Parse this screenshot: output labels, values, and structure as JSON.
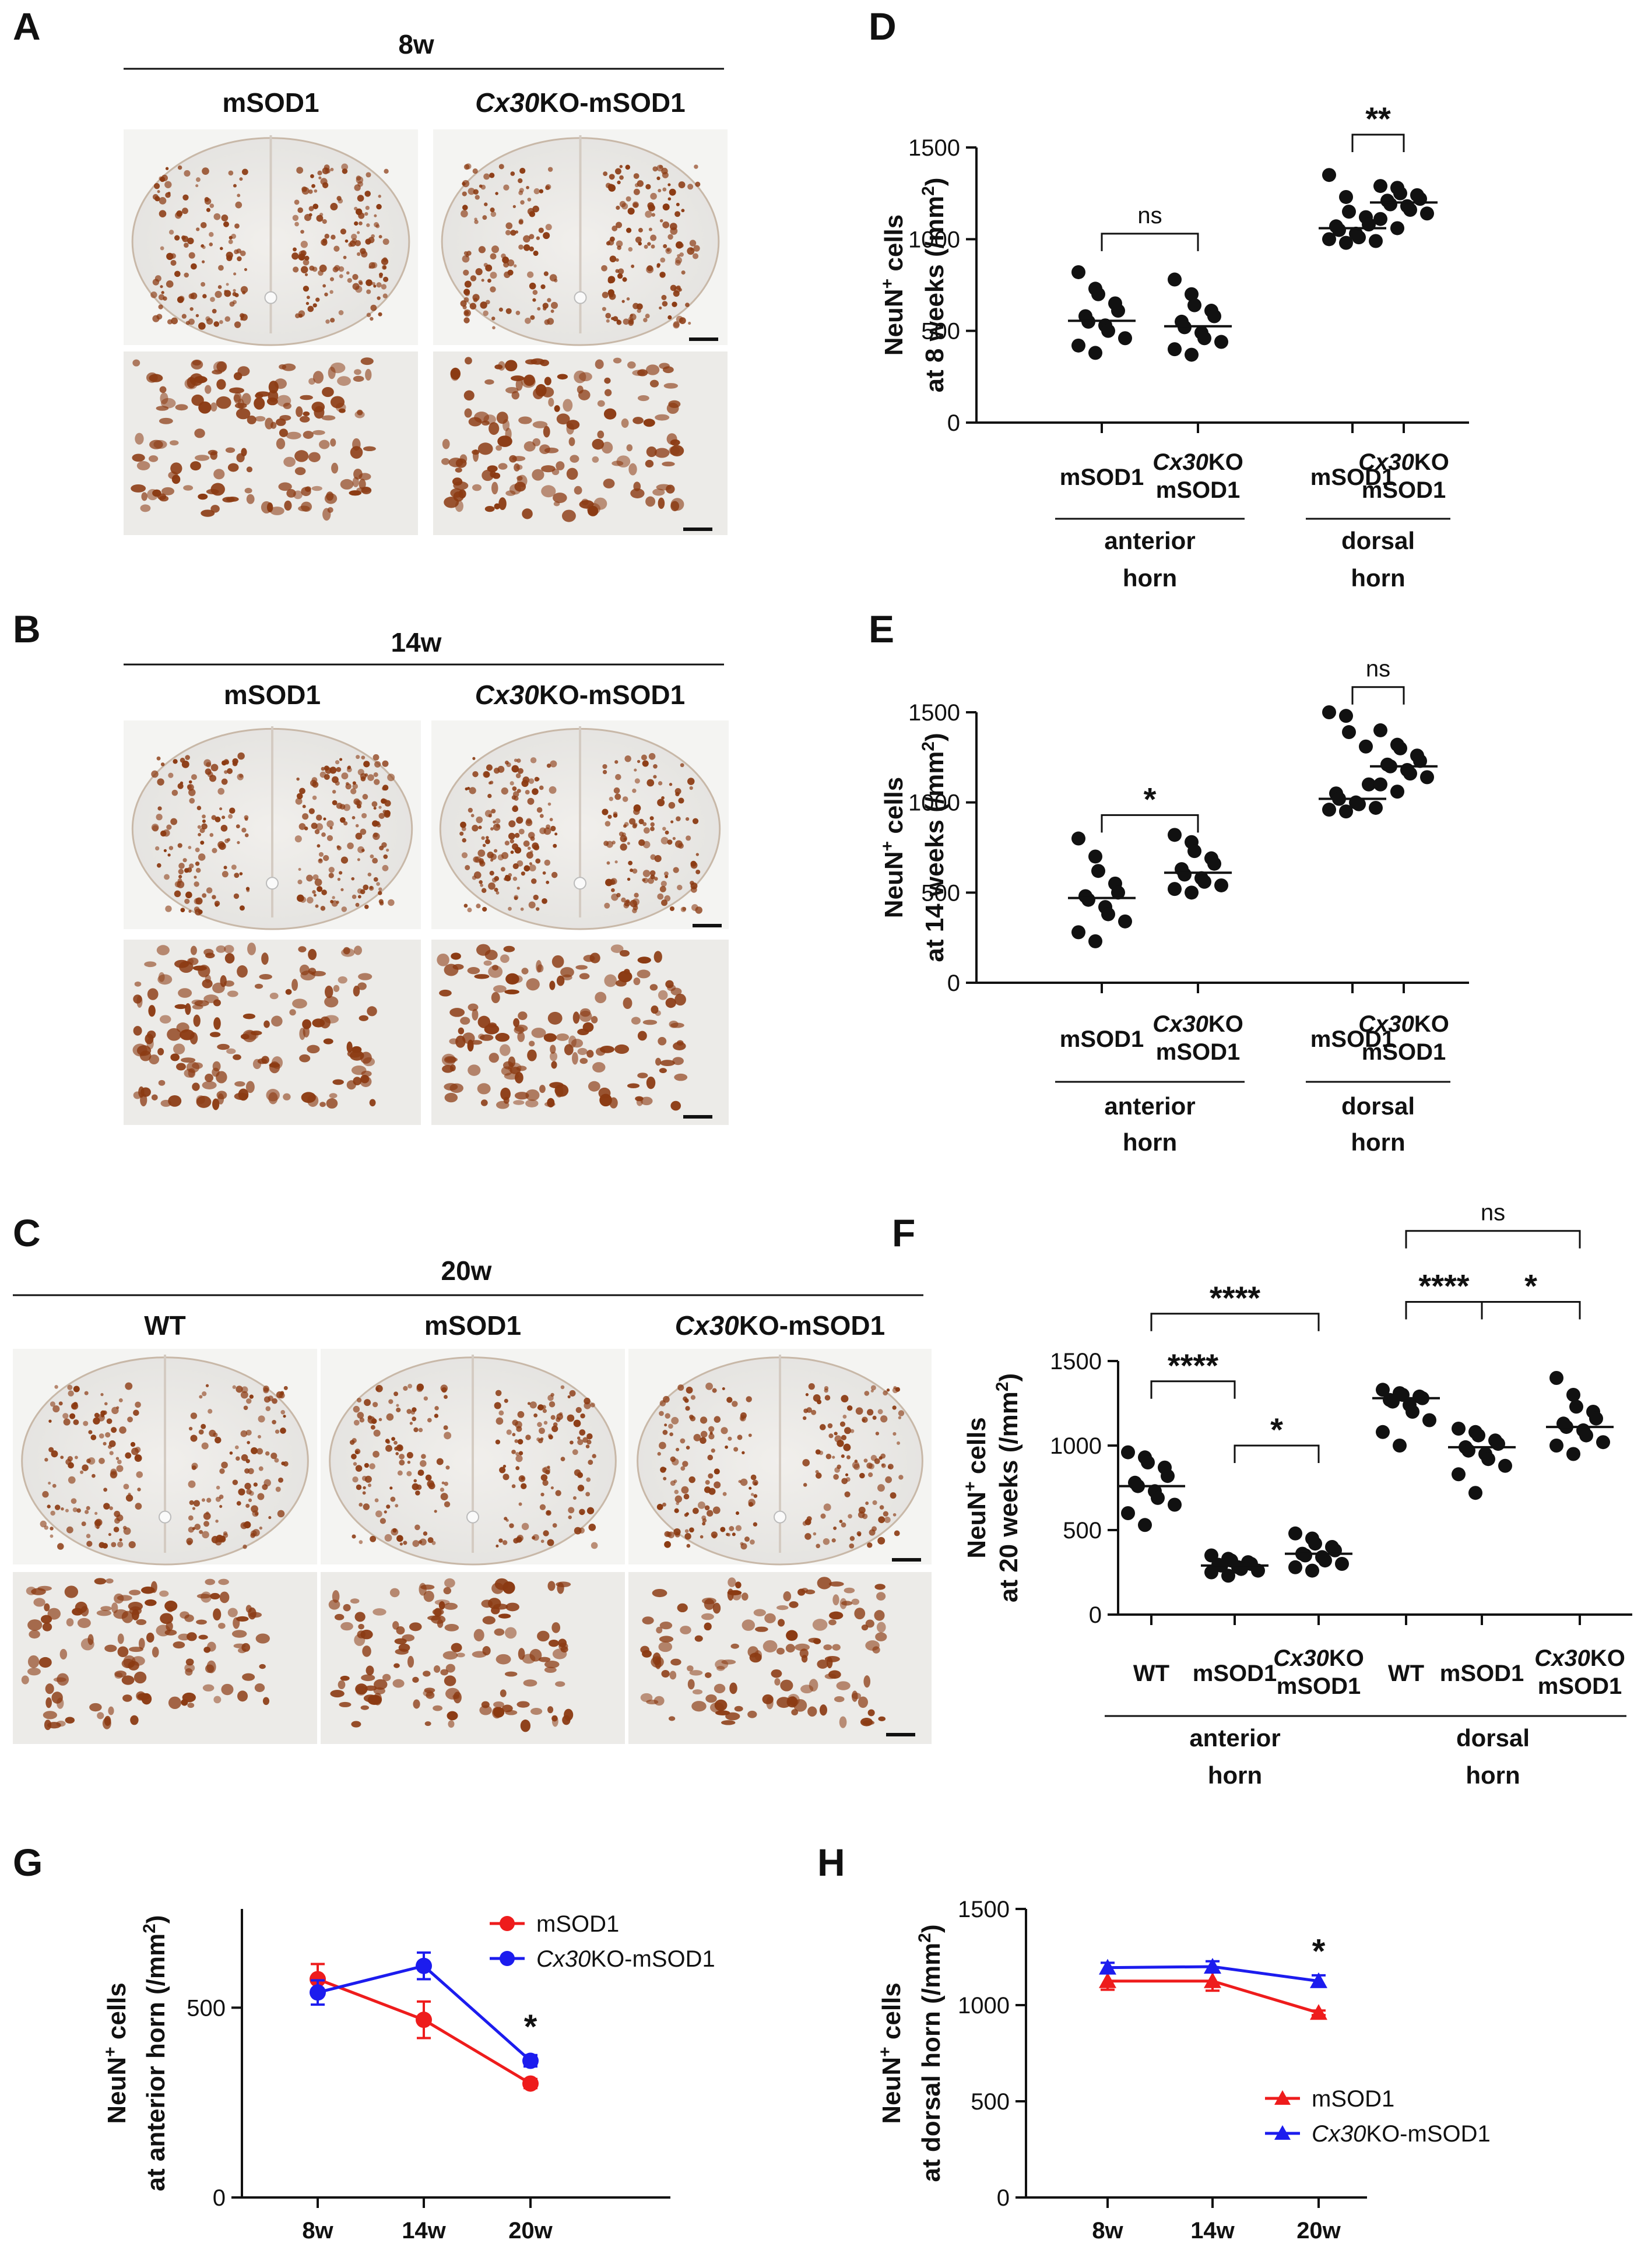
{
  "micrographs": {
    "A": {
      "letter": "A",
      "timepoint": "8w",
      "columns": [
        {
          "label": "mSOD1",
          "italic_prefix": ""
        },
        {
          "label": "KO-mSOD1",
          "italic_prefix": "Cx30"
        }
      ]
    },
    "B": {
      "letter": "B",
      "timepoint": "14w",
      "columns": [
        {
          "label": "mSOD1",
          "italic_prefix": ""
        },
        {
          "label": "KO-mSOD1",
          "italic_prefix": "Cx30"
        }
      ]
    },
    "C": {
      "letter": "C",
      "timepoint": "20w",
      "columns": [
        {
          "label": "WT",
          "italic_prefix": ""
        },
        {
          "label": "mSOD1",
          "italic_prefix": ""
        },
        {
          "label": "KO-mSOD1",
          "italic_prefix": "Cx30"
        }
      ]
    },
    "stain_color": "#8b3a12"
  },
  "chart_data": [
    {
      "panel": "D",
      "type": "scatter",
      "ylabel_line1": "NeuN",
      "ylabel_sup": "+",
      "ylabel_line1_rest": " cells",
      "ylabel_line2": "at 8 weeks (/mm",
      "ylabel_sup2": "2",
      "ylabel_end": ")",
      "ylim": [
        0,
        1500
      ],
      "yticks": [
        0,
        500,
        1000,
        1500
      ],
      "groups": [
        {
          "label": [
            "mSOD1"
          ],
          "italic_prefix": "",
          "median": 555,
          "values": [
            820,
            730,
            700,
            650,
            610,
            580,
            550,
            530,
            500,
            460,
            420,
            380
          ]
        },
        {
          "label": [
            "KO",
            "mSOD1"
          ],
          "italic_prefix": "Cx30",
          "median": 525,
          "values": [
            780,
            700,
            640,
            610,
            580,
            550,
            520,
            490,
            460,
            440,
            400,
            370
          ]
        },
        {
          "label": [
            "mSOD1"
          ],
          "italic_prefix": "",
          "median": 1060,
          "values": [
            1350,
            1230,
            1150,
            1120,
            1080,
            1070,
            1050,
            1030,
            1010,
            990,
            1000,
            980
          ]
        },
        {
          "label": [
            "KO",
            "mSOD1"
          ],
          "italic_prefix": "Cx30",
          "median": 1200,
          "values": [
            1290,
            1280,
            1250,
            1240,
            1220,
            1210,
            1190,
            1180,
            1160,
            1140,
            1110,
            1060
          ]
        }
      ],
      "regions": [
        {
          "label": [
            "anterior",
            "horn"
          ],
          "groups": [
            0,
            1
          ]
        },
        {
          "label": [
            "dorsal",
            "horn"
          ],
          "groups": [
            2,
            3
          ]
        }
      ],
      "comparisons": [
        {
          "a": 0,
          "b": 1,
          "y": 1030,
          "label": "ns"
        },
        {
          "a": 2,
          "b": 3,
          "y": 1570,
          "label": "**"
        }
      ]
    },
    {
      "panel": "E",
      "type": "scatter",
      "ylabel_line1": "NeuN",
      "ylabel_sup": "+",
      "ylabel_line1_rest": " cells",
      "ylabel_line2": "at 14 weeks (/mm",
      "ylabel_sup2": "2",
      "ylabel_end": ")",
      "ylim": [
        0,
        1500
      ],
      "yticks": [
        0,
        500,
        1000,
        1500
      ],
      "groups": [
        {
          "label": [
            "mSOD1"
          ],
          "italic_prefix": "",
          "median": 470,
          "values": [
            800,
            700,
            620,
            550,
            500,
            480,
            460,
            420,
            380,
            340,
            280,
            230
          ]
        },
        {
          "label": [
            "KO",
            "mSOD1"
          ],
          "italic_prefix": "Cx30",
          "median": 610,
          "values": [
            820,
            780,
            730,
            690,
            660,
            630,
            600,
            580,
            560,
            540,
            520,
            500
          ]
        },
        {
          "label": [
            "mSOD1"
          ],
          "italic_prefix": "",
          "median": 1020,
          "values": [
            1500,
            1480,
            1390,
            1310,
            1100,
            1050,
            1020,
            1000,
            990,
            970,
            960,
            950
          ]
        },
        {
          "label": [
            "KO",
            "mSOD1"
          ],
          "italic_prefix": "Cx30",
          "median": 1200,
          "values": [
            1400,
            1320,
            1300,
            1260,
            1230,
            1210,
            1200,
            1180,
            1160,
            1140,
            1100,
            1060
          ]
        }
      ],
      "regions": [
        {
          "label": [
            "anterior",
            "horn"
          ],
          "groups": [
            0,
            1
          ]
        },
        {
          "label": [
            "dorsal",
            "horn"
          ],
          "groups": [
            2,
            3
          ]
        }
      ],
      "comparisons": [
        {
          "a": 0,
          "b": 1,
          "y": 930,
          "label": "*"
        },
        {
          "a": 2,
          "b": 3,
          "y": 1640,
          "label": "ns"
        }
      ]
    },
    {
      "panel": "F",
      "type": "scatter",
      "ylabel_line1": "NeuN",
      "ylabel_sup": "+",
      "ylabel_line1_rest": " cells",
      "ylabel_line2": "at 20 weeks (/mm",
      "ylabel_sup2": "2",
      "ylabel_end": ")",
      "ylim": [
        0,
        1500
      ],
      "yticks": [
        0,
        500,
        1000,
        1500
      ],
      "groups": [
        {
          "label": [
            "WT"
          ],
          "italic_prefix": "",
          "median": 760,
          "values": [
            960,
            930,
            900,
            870,
            820,
            780,
            760,
            730,
            690,
            650,
            600,
            530
          ]
        },
        {
          "label": [
            "mSOD1"
          ],
          "italic_prefix": "",
          "median": 290,
          "values": [
            350,
            330,
            320,
            310,
            300,
            295,
            290,
            280,
            270,
            260,
            250,
            230
          ]
        },
        {
          "label": [
            "KO",
            "mSOD1"
          ],
          "italic_prefix": "Cx30",
          "median": 360,
          "values": [
            480,
            450,
            420,
            400,
            380,
            360,
            350,
            340,
            320,
            300,
            280,
            260
          ]
        },
        {
          "label": [
            "WT"
          ],
          "italic_prefix": "",
          "median": 1280,
          "values": [
            1330,
            1310,
            1300,
            1290,
            1280,
            1270,
            1260,
            1240,
            1200,
            1150,
            1080,
            1000
          ]
        },
        {
          "label": [
            "mSOD1"
          ],
          "italic_prefix": "",
          "median": 990,
          "values": [
            1100,
            1080,
            1060,
            1030,
            1010,
            990,
            970,
            950,
            920,
            880,
            830,
            720
          ]
        },
        {
          "label": [
            "KO",
            "mSOD1"
          ],
          "italic_prefix": "Cx30",
          "median": 1110,
          "values": [
            1400,
            1300,
            1230,
            1200,
            1160,
            1130,
            1110,
            1090,
            1060,
            1020,
            1000,
            950
          ]
        }
      ],
      "regions": [
        {
          "label": [
            "anterior",
            "horn"
          ],
          "groups": [
            0,
            1,
            2
          ]
        },
        {
          "label": [
            "dorsal",
            "horn"
          ],
          "groups": [
            3,
            4,
            5
          ]
        }
      ],
      "comparisons": [
        {
          "a": 0,
          "b": 2,
          "y": 1780,
          "label": "****"
        },
        {
          "a": 0,
          "b": 1,
          "y": 1380,
          "label": "****"
        },
        {
          "a": 1,
          "b": 2,
          "y": 1000,
          "label": "*"
        },
        {
          "a": 3,
          "b": 5,
          "y": 2270,
          "label": "ns"
        },
        {
          "a": 3,
          "b": 4,
          "y": 1850,
          "label": "****"
        },
        {
          "a": 4,
          "b": 5,
          "y": 1850,
          "label": "*"
        }
      ]
    },
    {
      "panel": "G",
      "type": "line",
      "ylabel_line1": "NeuN",
      "ylabel_sup": "+",
      "ylabel_line1_rest": " cells",
      "ylabel_line2": "at anterior horn (/mm",
      "ylabel_sup2": "2",
      "ylabel_end": ")",
      "ylim": [
        0,
        760
      ],
      "yticks": [
        0,
        500
      ],
      "x": [
        "8w",
        "14w",
        "20w"
      ],
      "marker": "circle",
      "series": [
        {
          "name": "mSOD1",
          "italic_prefix": "",
          "color": "#ee1c1c",
          "values": [
            575,
            468,
            300
          ],
          "err": [
            40,
            48,
            12
          ]
        },
        {
          "name": "KO-mSOD1",
          "italic_prefix": "Cx30",
          "color": "#1c1cee",
          "values": [
            540,
            610,
            360
          ],
          "err": [
            32,
            35,
            15
          ]
        }
      ],
      "annotations": [
        {
          "x_index": 2,
          "y": 450,
          "label": "*"
        }
      ],
      "legend": "top-right"
    },
    {
      "panel": "H",
      "type": "line",
      "ylabel_line1": "NeuN",
      "ylabel_sup": "+",
      "ylabel_line1_rest": " cells",
      "ylabel_line2": "at dorsal horn (/mm",
      "ylabel_sup2": "2",
      "ylabel_end": ")",
      "ylim": [
        0,
        1500
      ],
      "yticks": [
        0,
        500,
        1000,
        1500
      ],
      "x": [
        "8w",
        "14w",
        "20w"
      ],
      "marker": "triangle",
      "series": [
        {
          "name": "mSOD1",
          "italic_prefix": "",
          "color": "#ee1c1c",
          "values": [
            1125,
            1125,
            960
          ],
          "err": [
            45,
            50,
            12
          ]
        },
        {
          "name": "KO-mSOD1",
          "italic_prefix": "Cx30",
          "color": "#1c1cee",
          "values": [
            1195,
            1200,
            1125
          ],
          "err": [
            25,
            28,
            30
          ]
        }
      ],
      "annotations": [
        {
          "x_index": 2,
          "y": 1280,
          "label": "*"
        }
      ],
      "legend": "bottom-right"
    }
  ]
}
